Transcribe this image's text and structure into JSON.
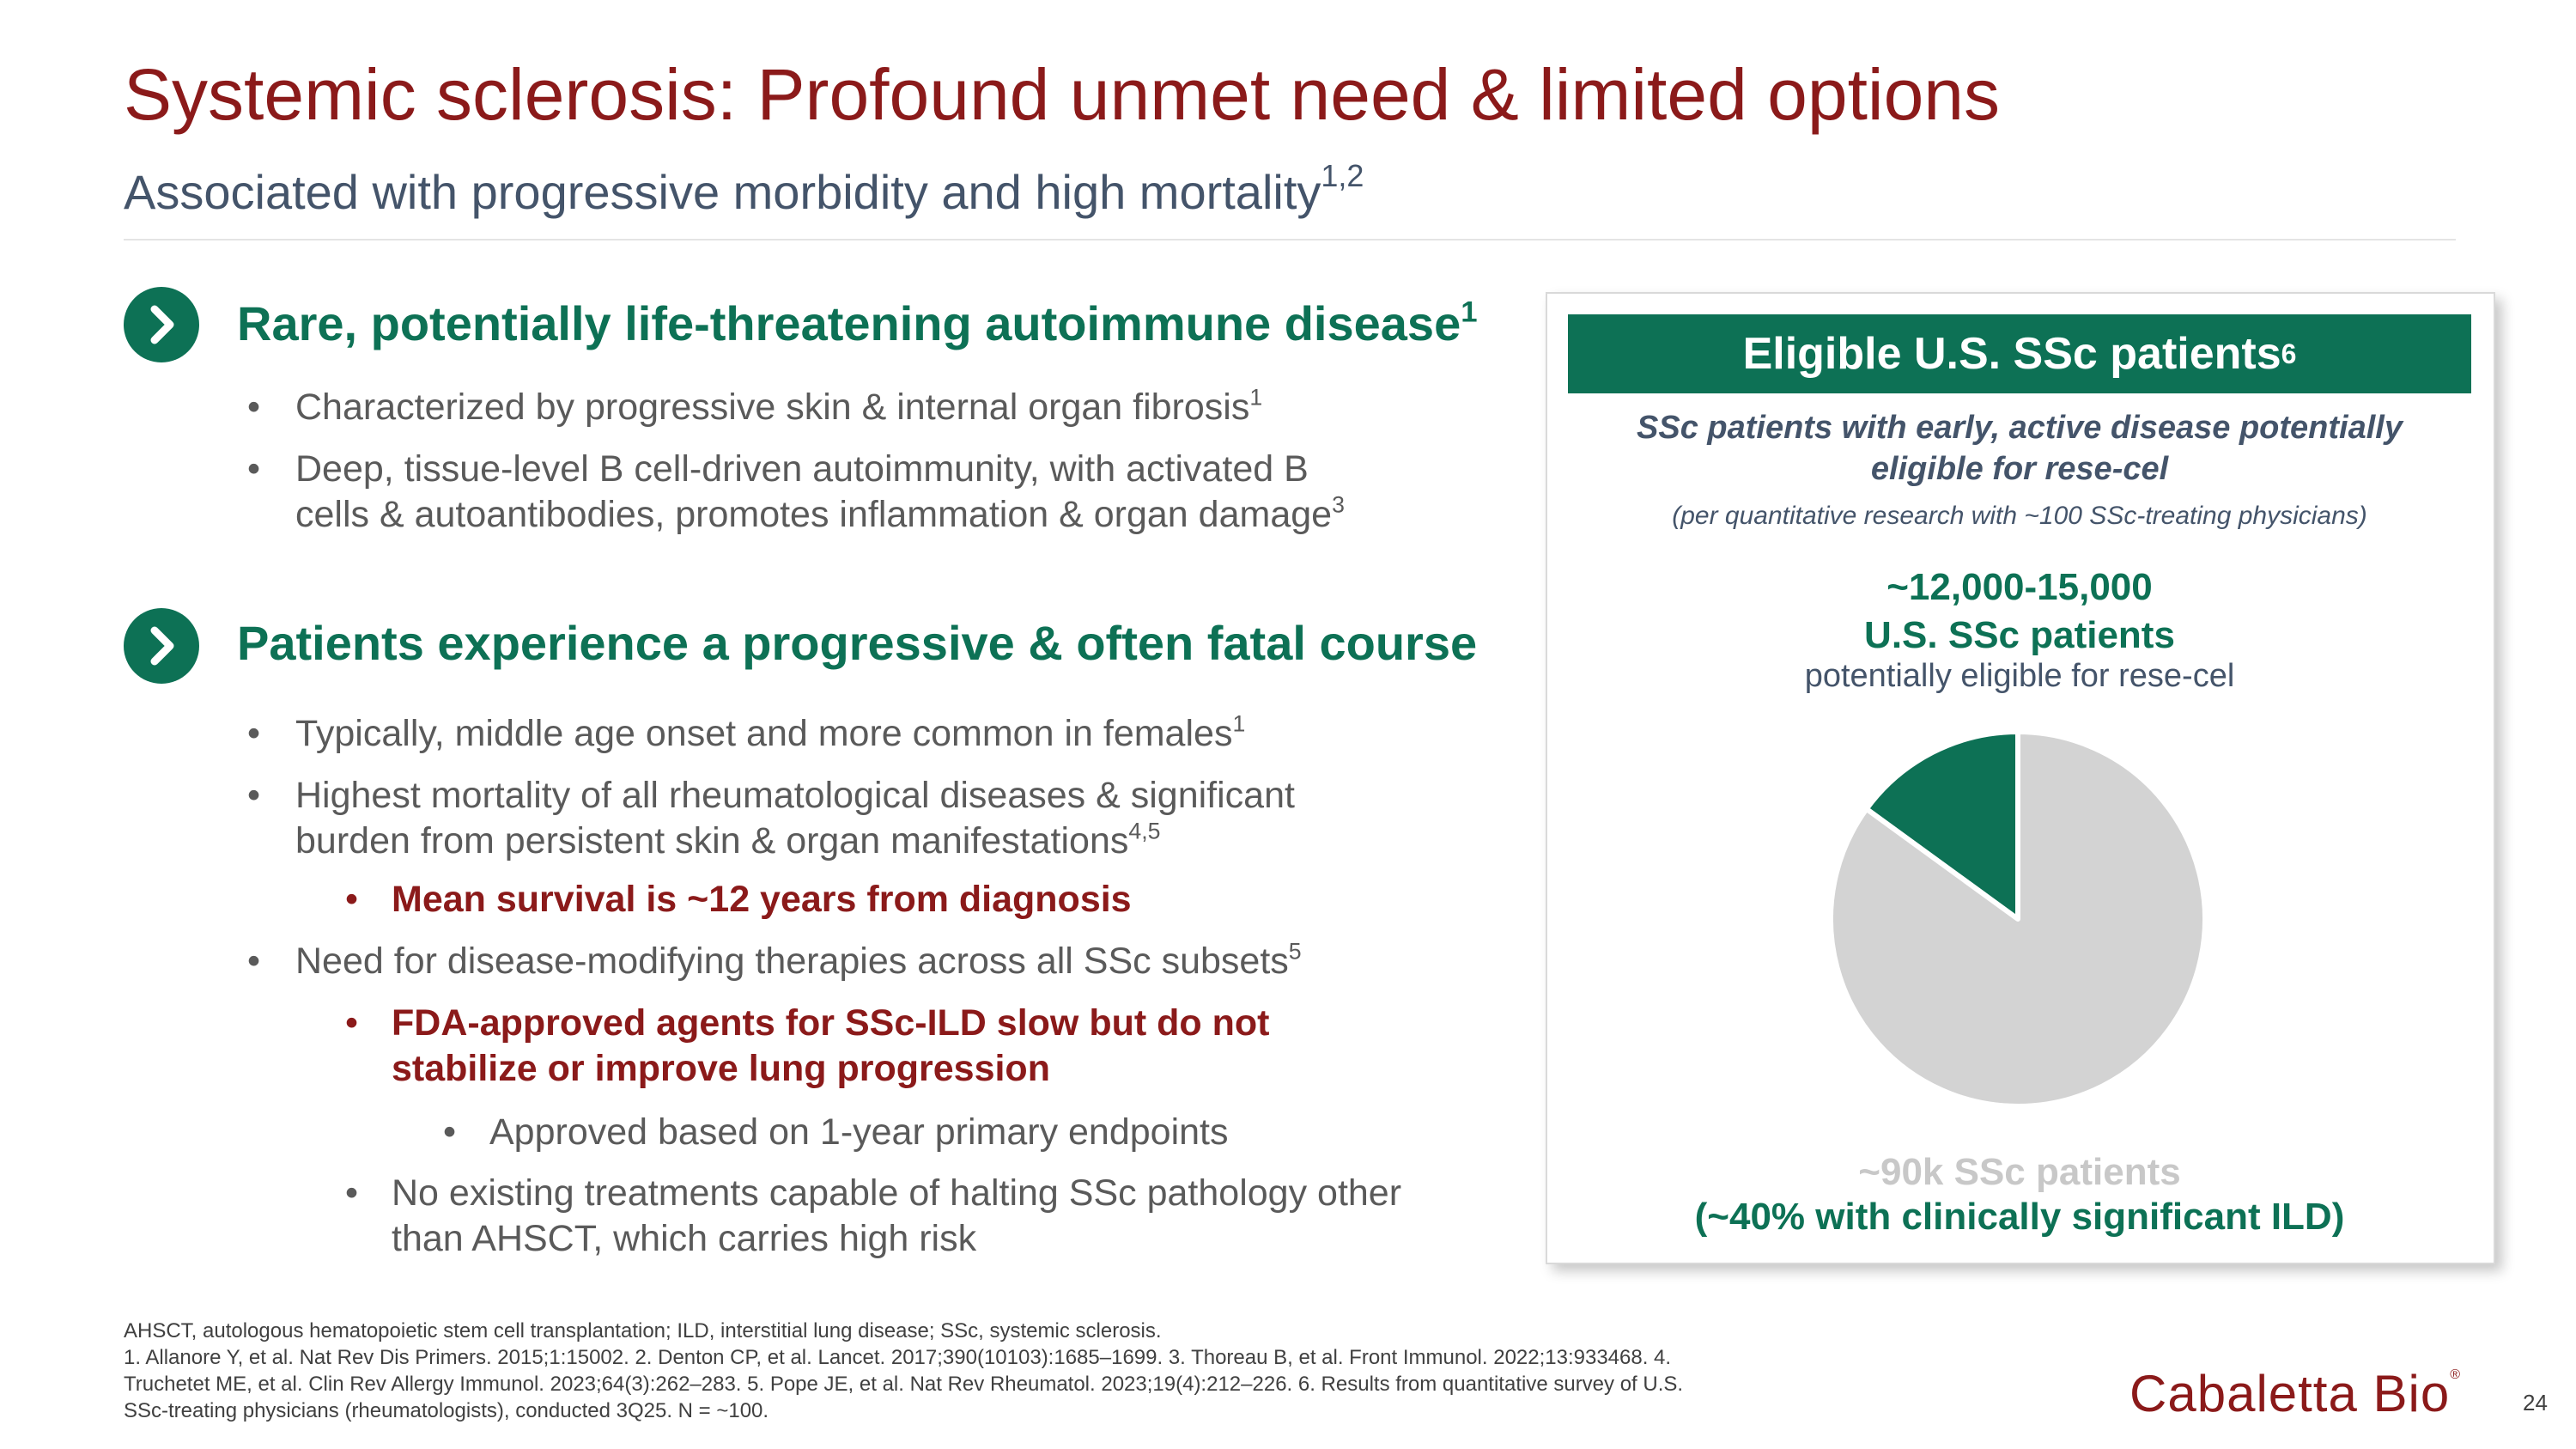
{
  "slide": {
    "title": "Systemic sclerosis: Profound unmet need & limited options",
    "subtitle": "Associated with progressive morbidity and high mortality",
    "subtitle_ref": "1,2",
    "page_number": "24"
  },
  "section1": {
    "heading": "Rare, potentially life-threatening autoimmune disease",
    "heading_ref": "1",
    "bullets": [
      {
        "text": "Characterized by progressive skin & internal organ fibrosis",
        "ref": "1"
      },
      {
        "line1": "Deep, tissue-level B cell-driven autoimmunity, with activated B",
        "line2": "cells & autoantibodies, promotes inflammation & organ damage",
        "ref": "3"
      }
    ]
  },
  "section2": {
    "heading": "Patients experience a progressive & often fatal course",
    "bullets": [
      {
        "text": "Typically, middle age onset and more common in females",
        "ref": "1"
      },
      {
        "line1": "Highest mortality of all rheumatological diseases & significant",
        "line2": "burden from persistent skin & organ manifestations",
        "ref": "4,5"
      },
      {
        "text": "Mean survival is ~12 years from diagnosis"
      },
      {
        "text": "Need for disease-modifying therapies across all SSc subsets",
        "ref": "5"
      },
      {
        "line1": "FDA-approved agents for SSc-ILD slow but do not",
        "line2": "stabilize or improve lung progression"
      },
      {
        "text": "Approved based on 1-year primary endpoints"
      },
      {
        "line1": "No existing treatments capable of halting SSc pathology other",
        "line2": "than AHSCT, which carries high risk"
      }
    ]
  },
  "panel": {
    "header": "Eligible U.S. SSc patients",
    "header_ref": "6",
    "italic_desc": "SSc patients with early, active disease potentially eligible for rese-cel",
    "note": "(per quantitative research with ~100 SSc-treating physicians)",
    "big_number": "~12,000-15,000",
    "big_label": "U.S. SSc patients",
    "big_sub": "potentially eligible for rese-cel",
    "total_label": "~90k SSc patients",
    "ild_label": "(~40% with clinically significant ILD)"
  },
  "chart_data": {
    "type": "pie",
    "slices": [
      {
        "label": "eligible",
        "value": 15,
        "color": "#0D7155"
      },
      {
        "label": "other",
        "value": 85,
        "color": "#D3D3D3"
      }
    ],
    "start_angle_deg": 0,
    "direction": "counterclockwise"
  },
  "footnotes": {
    "line1": "AHSCT, autologous hematopoietic stem cell transplantation; ILD, interstitial lung disease; SSc, systemic sclerosis.",
    "line2": "1. Allanore Y, et al. Nat Rev Dis Primers. 2015;1:15002. 2. Denton CP, et al. Lancet. 2017;390(10103):1685–1699. 3. Thoreau B, et al. Front Immunol. 2022;13:933468. 4.",
    "line3": "Truchetet ME, et al. Clin Rev Allergy Immunol. 2023;64(3):262–283. 5. Pope JE, et al. Nat Rev Rheumatol. 2023;19(4):212–226. 6. Results from quantitative survey of U.S.",
    "line4": "SSc-treating physicians (rheumatologists), conducted 3Q25. N = ~100."
  },
  "logo": {
    "text": "Cabaletta Bio",
    "reg": "®"
  },
  "colors": {
    "title_red": "#8B1A1A",
    "accent_green": "#0D7155",
    "subtitle_gray": "#44546A",
    "pie_gray": "#D3D3D3"
  },
  "icons": {
    "section_marker": "chevron-right-circle-icon"
  }
}
